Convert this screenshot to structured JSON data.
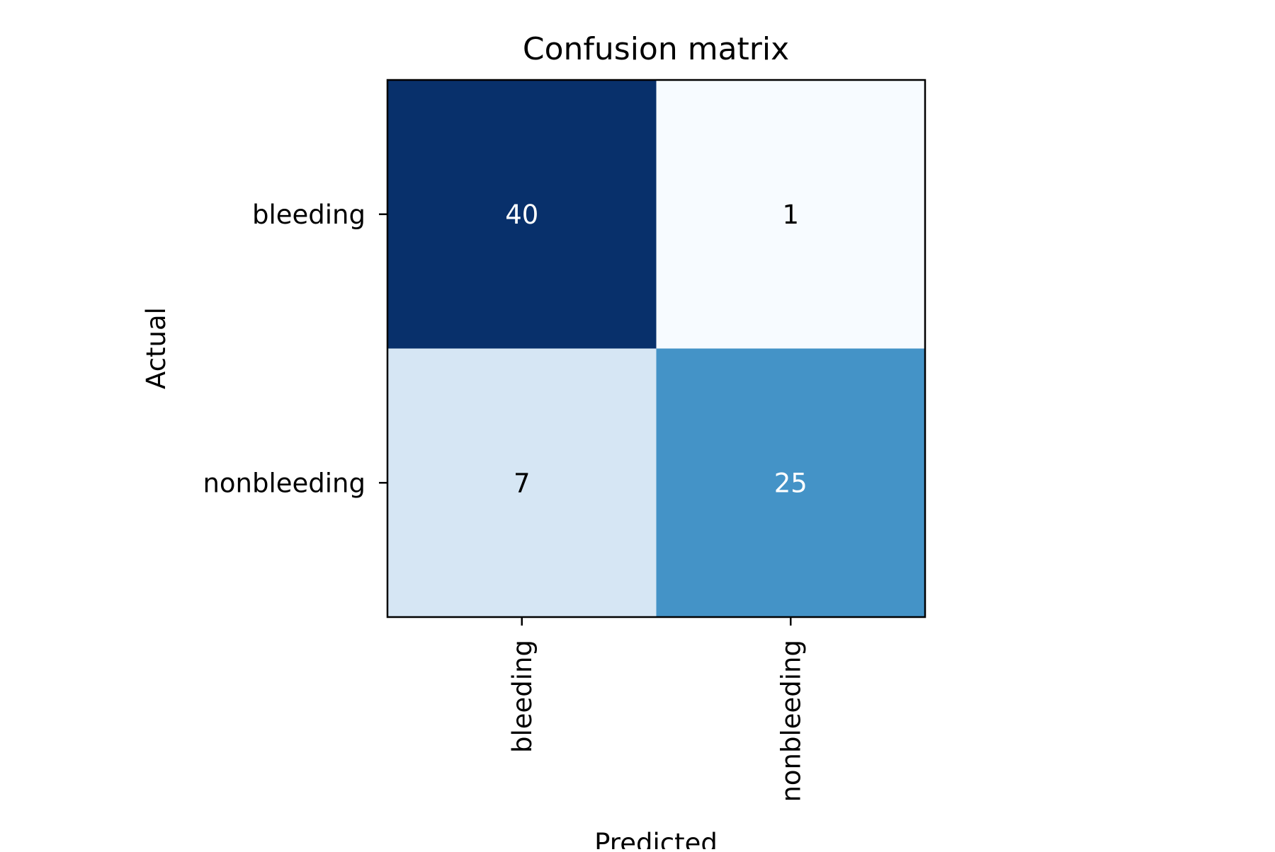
{
  "chart_data": {
    "type": "heatmap",
    "title": "Confusion matrix",
    "xlabel": "Predicted",
    "ylabel": "Actual",
    "x_categories": [
      "bleeding",
      "nonbleeding"
    ],
    "y_categories": [
      "bleeding",
      "nonbleeding"
    ],
    "values": [
      [
        40,
        1
      ],
      [
        7,
        25
      ]
    ],
    "colormap": "Blues",
    "vmin": 1,
    "vmax": 40,
    "cell_colors": [
      [
        "#08306b",
        "#f7fbff"
      ],
      [
        "#d6e6f4",
        "#4493c7"
      ]
    ],
    "text_colors": [
      [
        "#ffffff",
        "#000000"
      ],
      [
        "#000000",
        "#ffffff"
      ]
    ],
    "grid": false,
    "legend": "none"
  }
}
